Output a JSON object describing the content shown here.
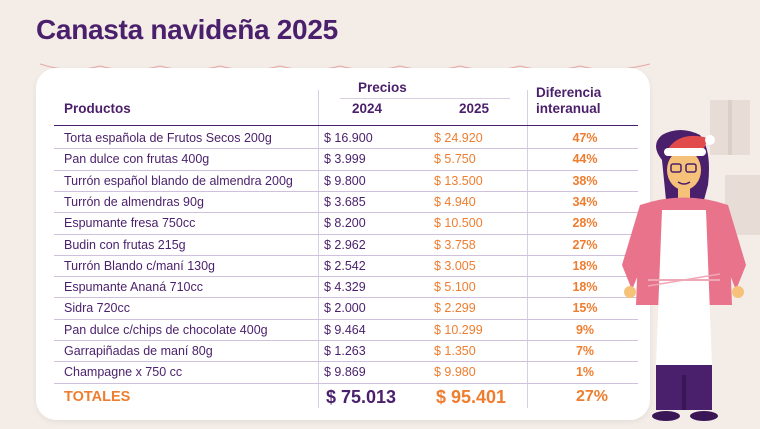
{
  "title": "Canasta navideña 2025",
  "header": {
    "productos": "Productos",
    "precios": "Precios",
    "year_a": "2024",
    "year_b": "2025",
    "diff_line1": "Diferencia",
    "diff_line2": "interanual"
  },
  "rows": [
    {
      "name": "Torta española de Frutos Secos 200g",
      "p2024": "$ 16.900",
      "p2025": "$ 24.920",
      "diff": "47%"
    },
    {
      "name": "Pan dulce con frutas 400g",
      "p2024": "$ 3.999",
      "p2025": "$ 5.750",
      "diff": "44%"
    },
    {
      "name": "Turrón español blando de almendra 200g",
      "p2024": "$ 9.800",
      "p2025": "$ 13.500",
      "diff": "38%"
    },
    {
      "name": "Turrón de almendras 90g",
      "p2024": "$ 3.685",
      "p2025": "$ 4.940",
      "diff": "34%"
    },
    {
      "name": "Espumante fresa 750cc",
      "p2024": "$ 8.200",
      "p2025": "$ 10.500",
      "diff": "28%"
    },
    {
      "name": "Budin con frutas 215g",
      "p2024": "$ 2.962",
      "p2025": "$ 3.758",
      "diff": "27%"
    },
    {
      "name": "Turrón Blando c/maní 130g",
      "p2024": "$ 2.542",
      "p2025": "$ 3.005",
      "diff": "18%"
    },
    {
      "name": "Espumante Ananá 710cc",
      "p2024": "$ 4.329",
      "p2025": "$ 5.100",
      "diff": "18%"
    },
    {
      "name": "Sidra 720cc",
      "p2024": "$ 2.000",
      "p2025": "$ 2.299",
      "diff": "15%"
    },
    {
      "name": "Pan dulce c/chips de chocolate 400g",
      "p2024": "$ 9.464",
      "p2025": "$ 10.299",
      "diff": "9%"
    },
    {
      "name": "Garrapiñadas de maní 80g",
      "p2024": "$ 1.263",
      "p2025": "$ 1.350",
      "diff": "7%"
    },
    {
      "name": "Champagne x 750 cc",
      "p2024": "$ 9.869",
      "p2025": "$ 9.980",
      "diff": "1%"
    }
  ],
  "totals": {
    "label": "TOTALES",
    "p2024": "$ 75.013",
    "p2025": "$ 95.401",
    "diff": "27%"
  },
  "colors": {
    "purple": "#4a1f6b",
    "orange": "#ef7d2f",
    "background": "#f3ece7"
  }
}
